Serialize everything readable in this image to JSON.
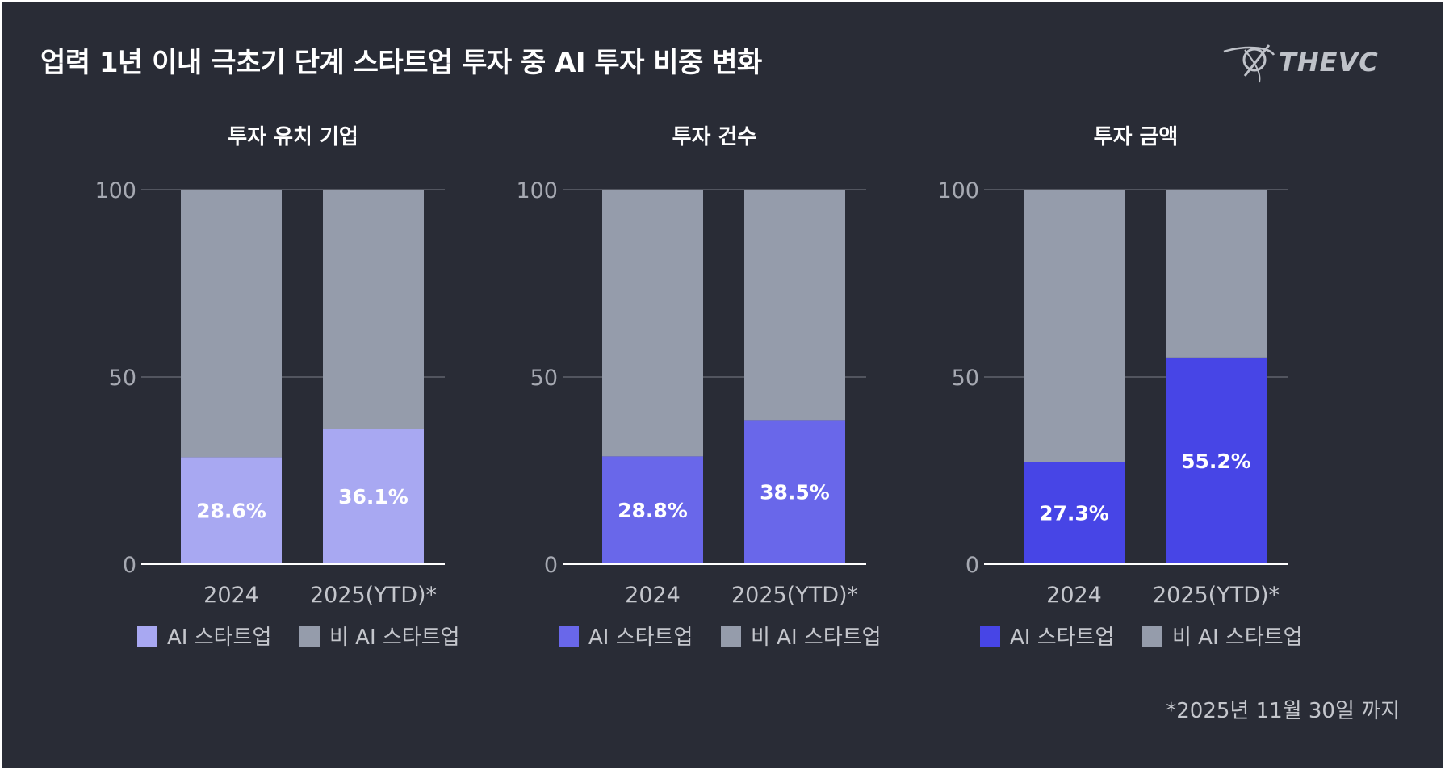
{
  "title": "업력 1년 이내 극초기 단계 스타트업 투자 중 AI 투자 비중 변화",
  "logo_text": "THEVC",
  "footnote": "*2025년 11월 30일 까지",
  "colors": {
    "background": "#292c36",
    "non_ai": "#959cab",
    "gridline": "#7a7e88",
    "axis": "#ffffff"
  },
  "chart_data": [
    {
      "type": "bar",
      "stacked": true,
      "title": "투자 유치 기업",
      "categories": [
        "2024",
        "2025(YTD)*"
      ],
      "ylim": [
        0,
        100
      ],
      "yticks": [
        0,
        50,
        100
      ],
      "grid": true,
      "series": [
        {
          "name": "AI 스타트업",
          "values": [
            28.6,
            36.1
          ],
          "labels": [
            "28.6%",
            "36.1%"
          ],
          "color": "#a8a8f2"
        },
        {
          "name": "비 AI 스타트업",
          "values": [
            71.4,
            63.9
          ],
          "color": "#959cab"
        }
      ]
    },
    {
      "type": "bar",
      "stacked": true,
      "title": "투자 건수",
      "categories": [
        "2024",
        "2025(YTD)*"
      ],
      "ylim": [
        0,
        100
      ],
      "yticks": [
        0,
        50,
        100
      ],
      "grid": true,
      "series": [
        {
          "name": "AI 스타트업",
          "values": [
            28.8,
            38.5
          ],
          "labels": [
            "28.8%",
            "38.5%"
          ],
          "color": "#6967ea"
        },
        {
          "name": "비 AI 스타트업",
          "values": [
            71.2,
            61.5
          ],
          "color": "#959cab"
        }
      ]
    },
    {
      "type": "bar",
      "stacked": true,
      "title": "투자 금액",
      "categories": [
        "2024",
        "2025(YTD)*"
      ],
      "ylim": [
        0,
        100
      ],
      "yticks": [
        0,
        50,
        100
      ],
      "grid": true,
      "series": [
        {
          "name": "AI 스타트업",
          "values": [
            27.3,
            55.2
          ],
          "labels": [
            "27.3%",
            "55.2%"
          ],
          "color": "#4745e6"
        },
        {
          "name": "비 AI 스타트업",
          "values": [
            72.7,
            44.8
          ],
          "color": "#959cab"
        }
      ]
    }
  ]
}
